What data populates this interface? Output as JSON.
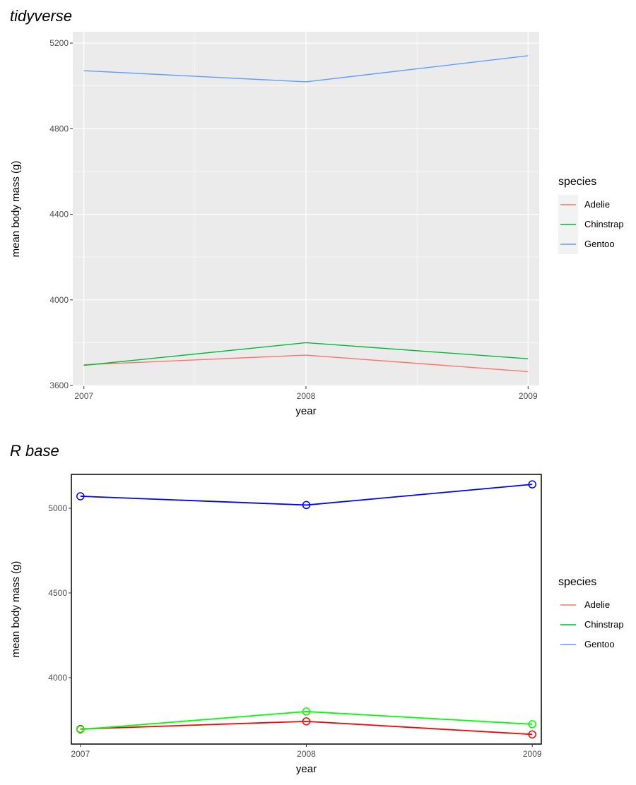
{
  "chart_data": [
    {
      "type": "line",
      "title": "tidyverse",
      "xlabel": "year",
      "ylabel": "mean body mass (g)",
      "x": [
        2007,
        2008,
        2009
      ],
      "xticks": [
        "2007",
        "2008",
        "2009"
      ],
      "yticks": [
        "3600",
        "4000",
        "4400",
        "4800",
        "5200"
      ],
      "xlim": [
        2006.95,
        2009.05
      ],
      "ylim": [
        3597,
        5253
      ],
      "grid": true,
      "background": "#EBEBEB",
      "legend": {
        "title": "species",
        "placement": "right"
      },
      "series": [
        {
          "name": "Adelie",
          "color": "#F8766D",
          "values": [
            3697,
            3742,
            3665
          ]
        },
        {
          "name": "Chinstrap",
          "color": "#00BA38",
          "values": [
            3694,
            3800,
            3725
          ]
        },
        {
          "name": "Gentoo",
          "color": "#619CFF",
          "values": [
            5071,
            5019,
            5141
          ]
        }
      ]
    },
    {
      "type": "line",
      "title": "R base",
      "xlabel": "year",
      "ylabel": "mean body mass (g)",
      "x": [
        2007,
        2008,
        2009
      ],
      "xticks": [
        "2007",
        "2008",
        "2009"
      ],
      "yticks": [
        "4000",
        "4500",
        "5000"
      ],
      "xlim": [
        2006.96,
        2009.04
      ],
      "ylim": [
        3608,
        5200
      ],
      "grid": false,
      "markers": "open-circle",
      "legend": {
        "title": "species",
        "placement": "right"
      },
      "series": [
        {
          "name": "Adelie",
          "color": "#FF0000",
          "legend_color": "#F8766D",
          "values": [
            3697,
            3742,
            3665
          ]
        },
        {
          "name": "Chinstrap",
          "color": "#00FF00",
          "legend_color": "#00BA38",
          "values": [
            3694,
            3800,
            3725
          ]
        },
        {
          "name": "Gentoo",
          "color": "#0000FF",
          "legend_color": "#619CFF",
          "values": [
            5071,
            5019,
            5141
          ]
        }
      ]
    }
  ]
}
